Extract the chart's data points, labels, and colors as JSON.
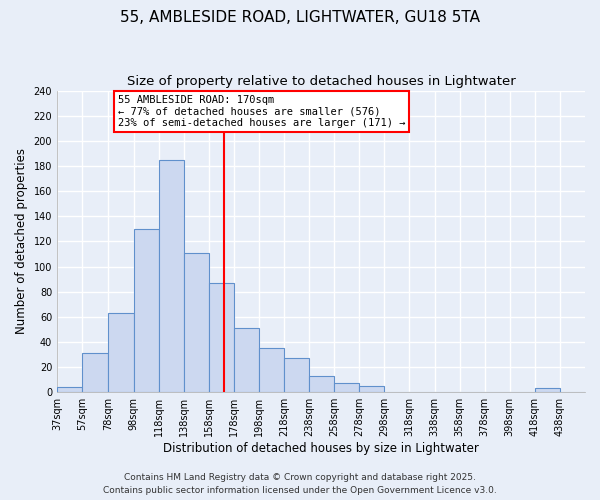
{
  "title": "55, AMBLESIDE ROAD, LIGHTWATER, GU18 5TA",
  "subtitle": "Size of property relative to detached houses in Lightwater",
  "xlabel": "Distribution of detached houses by size in Lightwater",
  "ylabel": "Number of detached properties",
  "bin_left": [
    37,
    57,
    78,
    98,
    118,
    138,
    158,
    178,
    198,
    218,
    238,
    258,
    278,
    298,
    318,
    338,
    358,
    378,
    398,
    418,
    438
  ],
  "bin_right": [
    57,
    78,
    98,
    118,
    138,
    158,
    178,
    198,
    218,
    238,
    258,
    278,
    298,
    318,
    338,
    358,
    378,
    398,
    418,
    438,
    458
  ],
  "bar_heights": [
    4,
    31,
    63,
    130,
    185,
    111,
    87,
    51,
    35,
    27,
    13,
    7,
    5,
    0,
    0,
    0,
    0,
    0,
    0,
    3,
    0
  ],
  "bar_color": "#ccd8f0",
  "bar_edge_color": "#6090cc",
  "property_line_x": 170,
  "property_line_color": "red",
  "annotation_title": "55 AMBLESIDE ROAD: 170sqm",
  "annotation_line1": "← 77% of detached houses are smaller (576)",
  "annotation_line2": "23% of semi-detached houses are larger (171) →",
  "annotation_box_color": "white",
  "annotation_box_edge_color": "red",
  "ylim": [
    0,
    240
  ],
  "yticks": [
    0,
    20,
    40,
    60,
    80,
    100,
    120,
    140,
    160,
    180,
    200,
    220,
    240
  ],
  "xtick_labels": [
    "37sqm",
    "57sqm",
    "78sqm",
    "98sqm",
    "118sqm",
    "138sqm",
    "158sqm",
    "178sqm",
    "198sqm",
    "218sqm",
    "238sqm",
    "258sqm",
    "278sqm",
    "298sqm",
    "318sqm",
    "338sqm",
    "358sqm",
    "378sqm",
    "398sqm",
    "418sqm",
    "438sqm"
  ],
  "xlim_left": 37,
  "xlim_right": 458,
  "background_color": "#e8eef8",
  "grid_color": "#ffffff",
  "footer_line1": "Contains HM Land Registry data © Crown copyright and database right 2025.",
  "footer_line2": "Contains public sector information licensed under the Open Government Licence v3.0.",
  "title_fontsize": 11,
  "subtitle_fontsize": 9.5,
  "axis_label_fontsize": 8.5,
  "tick_fontsize": 7,
  "annotation_fontsize": 7.5,
  "footer_fontsize": 6.5
}
